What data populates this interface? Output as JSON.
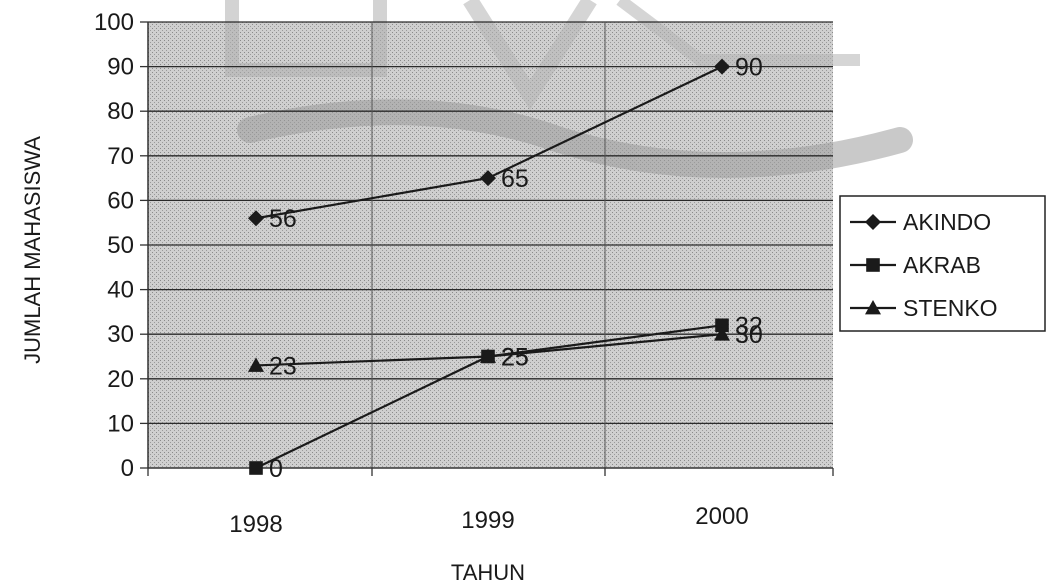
{
  "chart_data": {
    "type": "line",
    "title": "",
    "xlabel": "TAHUN",
    "ylabel": "JUMLAH MAHASISWA",
    "categories": [
      "1998",
      "1999",
      "2000"
    ],
    "ylim": [
      0,
      100
    ],
    "yticks": [
      0,
      10,
      20,
      30,
      40,
      50,
      60,
      70,
      80,
      90,
      100
    ],
    "grid": true,
    "legend_position": "right",
    "series": [
      {
        "name": "AKINDO",
        "marker": "diamond",
        "values": [
          56,
          65,
          90
        ],
        "labels": [
          "56",
          "65",
          "90"
        ]
      },
      {
        "name": "AKRAB",
        "marker": "square",
        "values": [
          0,
          25,
          32
        ],
        "labels": [
          "0",
          "25",
          "32"
        ]
      },
      {
        "name": "STENKO",
        "marker": "triangle",
        "values": [
          23,
          25,
          30
        ],
        "labels": [
          "23",
          "25",
          "30"
        ]
      }
    ],
    "colors": {
      "plot_background": "#c8c8c8",
      "gridline": "#2a2a2a",
      "series_line": "#1a1a1a",
      "watermark": "#b9b9b9"
    }
  }
}
